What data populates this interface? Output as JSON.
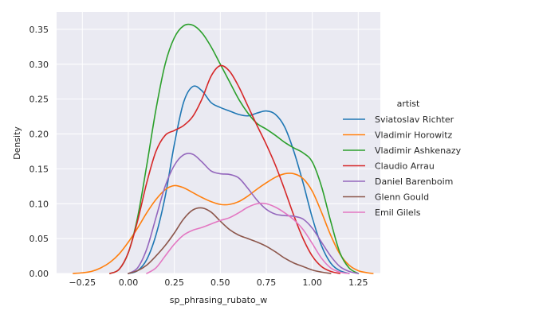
{
  "chart_data": {
    "type": "line",
    "title": "",
    "xlabel": "sp_phrasing_rubato_w",
    "ylabel": "Density",
    "xlim": [
      -0.39,
      1.37
    ],
    "ylim": [
      0,
      0.375
    ],
    "xticks": [
      -0.25,
      0.0,
      0.25,
      0.5,
      0.75,
      1.0,
      1.25
    ],
    "xtick_labels": [
      "−0.25",
      "0.00",
      "0.25",
      "0.50",
      "0.75",
      "1.00",
      "1.25"
    ],
    "yticks": [
      0.0,
      0.05,
      0.1,
      0.15,
      0.2,
      0.25,
      0.3,
      0.35
    ],
    "ytick_labels": [
      "0.00",
      "0.05",
      "0.10",
      "0.15",
      "0.20",
      "0.25",
      "0.30",
      "0.35"
    ],
    "grid": true,
    "background": "#eaeaf2",
    "legend": {
      "title": "artist",
      "placement": "right-outside"
    },
    "series": [
      {
        "name": "Sviatoslav Richter",
        "color": "#1f77b4",
        "points": [
          [
            0.0,
            0.0
          ],
          [
            0.05,
            0.004
          ],
          [
            0.1,
            0.02
          ],
          [
            0.15,
            0.055
          ],
          [
            0.2,
            0.11
          ],
          [
            0.25,
            0.185
          ],
          [
            0.3,
            0.245
          ],
          [
            0.35,
            0.268
          ],
          [
            0.4,
            0.262
          ],
          [
            0.45,
            0.245
          ],
          [
            0.5,
            0.238
          ],
          [
            0.55,
            0.233
          ],
          [
            0.6,
            0.228
          ],
          [
            0.65,
            0.226
          ],
          [
            0.7,
            0.23
          ],
          [
            0.75,
            0.233
          ],
          [
            0.8,
            0.228
          ],
          [
            0.85,
            0.21
          ],
          [
            0.9,
            0.175
          ],
          [
            0.95,
            0.13
          ],
          [
            1.0,
            0.08
          ],
          [
            1.05,
            0.04
          ],
          [
            1.1,
            0.015
          ],
          [
            1.15,
            0.004
          ],
          [
            1.2,
            0.0
          ]
        ]
      },
      {
        "name": "Vladimir Horowitz",
        "color": "#ff7f0e",
        "points": [
          [
            -0.3,
            0.0
          ],
          [
            -0.25,
            0.001
          ],
          [
            -0.2,
            0.003
          ],
          [
            -0.15,
            0.008
          ],
          [
            -0.1,
            0.016
          ],
          [
            -0.05,
            0.028
          ],
          [
            0.0,
            0.045
          ],
          [
            0.05,
            0.065
          ],
          [
            0.1,
            0.087
          ],
          [
            0.15,
            0.106
          ],
          [
            0.2,
            0.12
          ],
          [
            0.25,
            0.126
          ],
          [
            0.3,
            0.123
          ],
          [
            0.35,
            0.116
          ],
          [
            0.4,
            0.109
          ],
          [
            0.45,
            0.103
          ],
          [
            0.5,
            0.099
          ],
          [
            0.55,
            0.099
          ],
          [
            0.6,
            0.103
          ],
          [
            0.65,
            0.111
          ],
          [
            0.7,
            0.121
          ],
          [
            0.75,
            0.13
          ],
          [
            0.8,
            0.138
          ],
          [
            0.85,
            0.143
          ],
          [
            0.9,
            0.143
          ],
          [
            0.95,
            0.136
          ],
          [
            1.0,
            0.118
          ],
          [
            1.05,
            0.088
          ],
          [
            1.1,
            0.055
          ],
          [
            1.15,
            0.028
          ],
          [
            1.2,
            0.012
          ],
          [
            1.25,
            0.004
          ],
          [
            1.3,
            0.001
          ],
          [
            1.33,
            0.0
          ]
        ]
      },
      {
        "name": "Vladimir Ashkenazy",
        "color": "#2ca02c",
        "points": [
          [
            -0.1,
            0.0
          ],
          [
            -0.05,
            0.006
          ],
          [
            0.0,
            0.03
          ],
          [
            0.05,
            0.08
          ],
          [
            0.1,
            0.155
          ],
          [
            0.15,
            0.235
          ],
          [
            0.2,
            0.3
          ],
          [
            0.25,
            0.338
          ],
          [
            0.3,
            0.355
          ],
          [
            0.35,
            0.356
          ],
          [
            0.4,
            0.345
          ],
          [
            0.45,
            0.325
          ],
          [
            0.5,
            0.3
          ],
          [
            0.55,
            0.275
          ],
          [
            0.6,
            0.25
          ],
          [
            0.65,
            0.23
          ],
          [
            0.7,
            0.215
          ],
          [
            0.75,
            0.207
          ],
          [
            0.8,
            0.198
          ],
          [
            0.85,
            0.188
          ],
          [
            0.9,
            0.18
          ],
          [
            0.95,
            0.173
          ],
          [
            1.0,
            0.16
          ],
          [
            1.05,
            0.125
          ],
          [
            1.1,
            0.075
          ],
          [
            1.15,
            0.03
          ],
          [
            1.2,
            0.008
          ],
          [
            1.25,
            0.0
          ]
        ]
      },
      {
        "name": "Claudio Arrau",
        "color": "#d62728",
        "points": [
          [
            -0.1,
            0.0
          ],
          [
            -0.05,
            0.006
          ],
          [
            0.0,
            0.03
          ],
          [
            0.05,
            0.075
          ],
          [
            0.1,
            0.13
          ],
          [
            0.15,
            0.175
          ],
          [
            0.2,
            0.198
          ],
          [
            0.25,
            0.205
          ],
          [
            0.3,
            0.212
          ],
          [
            0.35,
            0.225
          ],
          [
            0.4,
            0.25
          ],
          [
            0.45,
            0.283
          ],
          [
            0.5,
            0.298
          ],
          [
            0.55,
            0.29
          ],
          [
            0.6,
            0.268
          ],
          [
            0.65,
            0.24
          ],
          [
            0.7,
            0.212
          ],
          [
            0.75,
            0.185
          ],
          [
            0.8,
            0.155
          ],
          [
            0.85,
            0.12
          ],
          [
            0.9,
            0.083
          ],
          [
            0.95,
            0.05
          ],
          [
            1.0,
            0.025
          ],
          [
            1.05,
            0.01
          ],
          [
            1.1,
            0.003
          ],
          [
            1.15,
            0.0
          ]
        ]
      },
      {
        "name": "Daniel Barenboim",
        "color": "#9467bd",
        "points": [
          [
            0.0,
            0.0
          ],
          [
            0.05,
            0.008
          ],
          [
            0.1,
            0.035
          ],
          [
            0.15,
            0.08
          ],
          [
            0.2,
            0.125
          ],
          [
            0.25,
            0.155
          ],
          [
            0.3,
            0.17
          ],
          [
            0.35,
            0.171
          ],
          [
            0.4,
            0.16
          ],
          [
            0.45,
            0.147
          ],
          [
            0.5,
            0.143
          ],
          [
            0.55,
            0.142
          ],
          [
            0.6,
            0.137
          ],
          [
            0.65,
            0.122
          ],
          [
            0.7,
            0.105
          ],
          [
            0.75,
            0.092
          ],
          [
            0.8,
            0.085
          ],
          [
            0.85,
            0.083
          ],
          [
            0.9,
            0.082
          ],
          [
            0.95,
            0.078
          ],
          [
            1.0,
            0.065
          ],
          [
            1.05,
            0.045
          ],
          [
            1.1,
            0.025
          ],
          [
            1.15,
            0.01
          ],
          [
            1.2,
            0.003
          ],
          [
            1.25,
            0.0
          ]
        ]
      },
      {
        "name": "Glenn Gould",
        "color": "#8c564b",
        "points": [
          [
            0.0,
            0.0
          ],
          [
            0.05,
            0.004
          ],
          [
            0.1,
            0.012
          ],
          [
            0.15,
            0.025
          ],
          [
            0.2,
            0.04
          ],
          [
            0.25,
            0.058
          ],
          [
            0.3,
            0.078
          ],
          [
            0.35,
            0.091
          ],
          [
            0.4,
            0.094
          ],
          [
            0.45,
            0.088
          ],
          [
            0.5,
            0.075
          ],
          [
            0.55,
            0.063
          ],
          [
            0.6,
            0.055
          ],
          [
            0.65,
            0.05
          ],
          [
            0.7,
            0.045
          ],
          [
            0.75,
            0.039
          ],
          [
            0.8,
            0.031
          ],
          [
            0.85,
            0.022
          ],
          [
            0.9,
            0.015
          ],
          [
            0.95,
            0.01
          ],
          [
            1.0,
            0.005
          ],
          [
            1.05,
            0.002
          ],
          [
            1.1,
            0.0
          ]
        ]
      },
      {
        "name": "Emil Gilels",
        "color": "#e377c2",
        "points": [
          [
            0.1,
            0.0
          ],
          [
            0.15,
            0.008
          ],
          [
            0.2,
            0.025
          ],
          [
            0.25,
            0.042
          ],
          [
            0.3,
            0.055
          ],
          [
            0.35,
            0.062
          ],
          [
            0.4,
            0.066
          ],
          [
            0.45,
            0.071
          ],
          [
            0.5,
            0.076
          ],
          [
            0.55,
            0.08
          ],
          [
            0.6,
            0.087
          ],
          [
            0.65,
            0.095
          ],
          [
            0.7,
            0.1
          ],
          [
            0.75,
            0.1
          ],
          [
            0.8,
            0.095
          ],
          [
            0.85,
            0.087
          ],
          [
            0.9,
            0.077
          ],
          [
            0.95,
            0.063
          ],
          [
            1.0,
            0.043
          ],
          [
            1.05,
            0.022
          ],
          [
            1.1,
            0.008
          ],
          [
            1.15,
            0.002
          ],
          [
            1.2,
            0.0
          ]
        ]
      }
    ]
  }
}
